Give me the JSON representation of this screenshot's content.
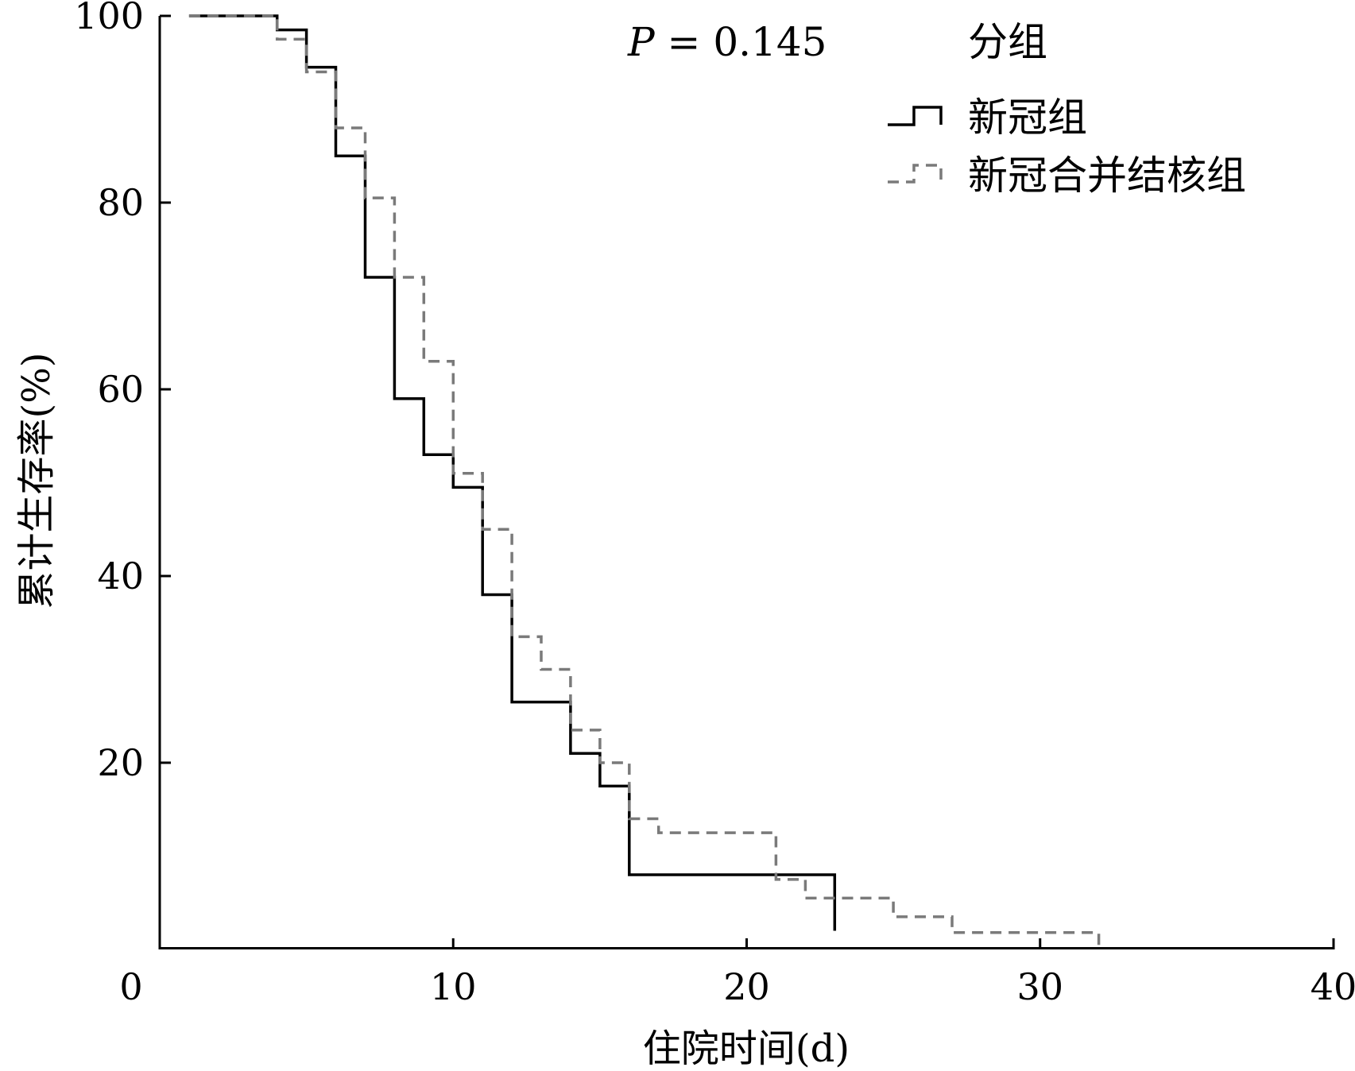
{
  "chart_data": {
    "type": "line",
    "subtype": "kaplan-meier step",
    "title": "",
    "xlabel": "住院时间(d)",
    "ylabel": "累计生存率(%)",
    "xlim": [
      0,
      40
    ],
    "ylim": [
      0,
      100
    ],
    "xticks": [
      0,
      10,
      20,
      30,
      40
    ],
    "yticks": [
      20,
      40,
      60,
      80,
      100
    ],
    "grid": false,
    "annotation": {
      "italic": "P",
      "text": " = 0.145"
    },
    "legend": {
      "title": "分组",
      "position": "top-right"
    },
    "series": [
      {
        "name": "新冠组",
        "style": "solid",
        "color": "#000000",
        "x": [
          1,
          4,
          5,
          6,
          7,
          8,
          9,
          10,
          11,
          12,
          14,
          15,
          16,
          23
        ],
        "y": [
          100,
          98.5,
          94.5,
          85,
          72,
          59,
          53,
          49.5,
          38,
          26.5,
          21,
          17.5,
          8,
          2
        ]
      },
      {
        "name": "新冠合并结核组",
        "style": "dashed",
        "color": "#7a7a7a",
        "x": [
          1,
          4,
          5,
          6,
          7,
          8,
          9,
          10,
          11,
          12,
          13,
          14,
          15,
          16,
          17,
          21,
          22,
          25,
          27,
          32
        ],
        "y": [
          100,
          97.5,
          94,
          88,
          80.5,
          72,
          63,
          51,
          45,
          33.5,
          30,
          23.5,
          20,
          14,
          12.5,
          7.5,
          5.5,
          3.5,
          1.8,
          0
        ]
      }
    ]
  }
}
